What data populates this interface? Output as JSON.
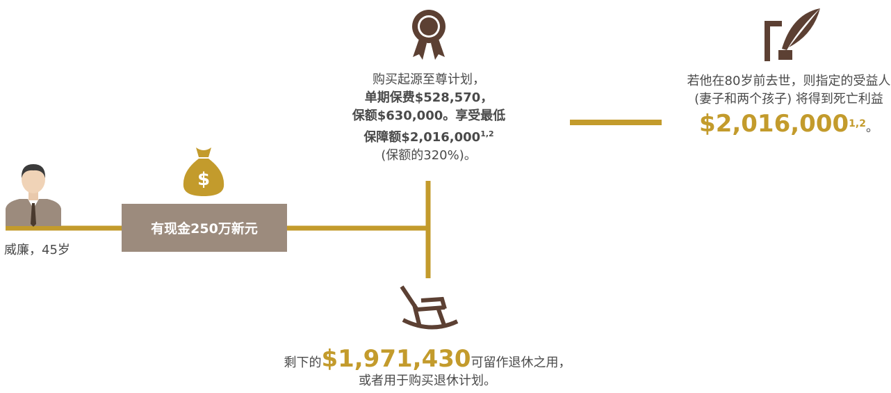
{
  "person": {
    "label": "威廉，45岁"
  },
  "cash": {
    "label": "有现金250万新元"
  },
  "plan": {
    "line1": "购买起源至尊计划，",
    "line2": "单期保费$528,570，",
    "line3": "保额$630,000。享受最低",
    "line4": "保障额$2,016,000",
    "line4_sup": "1,2",
    "line5": "(保额的320%)。"
  },
  "death_benefit": {
    "text": "若他在80岁前去世，则指定的受益人 (妻子和两个孩子) 将得到死亡利益",
    "amount": "$2,016,000",
    "sup": "1,2",
    "end": "。"
  },
  "retirement": {
    "prefix": "剩下的",
    "amount": "$1,971,430",
    "suffix": "可留作退休之用，或者用于购买退休计划。"
  }
}
